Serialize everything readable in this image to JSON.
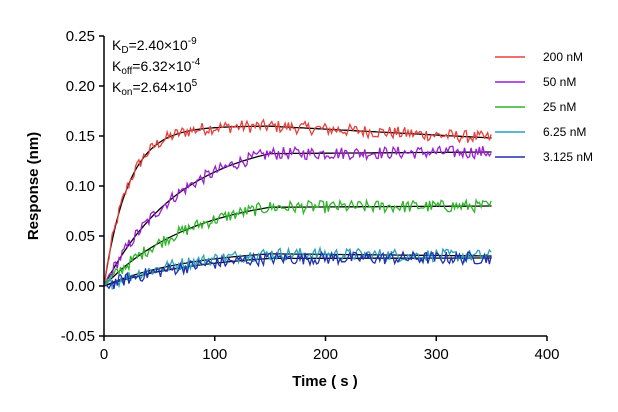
{
  "chart_data": {
    "type": "line",
    "xlabel": "Time ( s )",
    "ylabel": "Response (nm)",
    "xlim": [
      0,
      400
    ],
    "ylim": [
      -0.05,
      0.25
    ],
    "x_ticks": [
      "0",
      "100",
      "200",
      "300",
      "400"
    ],
    "y_ticks": [
      "-0.05",
      "0.00",
      "0.05",
      "0.10",
      "0.15",
      "0.20",
      "0.25"
    ],
    "grid": false,
    "legend_position": "top-right",
    "association_end": 150,
    "x_end": 350,
    "kinetics": {
      "kd": {
        "label": "K",
        "sub": "D",
        "value": "=2.40×10",
        "exp": "-9"
      },
      "koff": {
        "label": "K",
        "sub": "off",
        "value": "=6.32×10",
        "exp": "-4"
      },
      "kon": {
        "label": "K",
        "sub": "on",
        "value": "=2.64×10",
        "exp": "5"
      }
    },
    "series": [
      {
        "name": "200 nM",
        "color": "#e8413c",
        "amplitude": 0.16,
        "tau": 22,
        "decay_end": 0.148,
        "noise": 0.004
      },
      {
        "name": "50 nM",
        "color": "#9b1fd1",
        "amplitude": 0.15,
        "tau": 70,
        "decay_end": 0.134,
        "noise": 0.004
      },
      {
        "name": "25 nM",
        "color": "#2fb52a",
        "amplitude": 0.093,
        "tau": 80,
        "decay_end": 0.08,
        "noise": 0.004
      },
      {
        "name": "6.25 nM",
        "color": "#2aa1b8",
        "amplitude": 0.038,
        "tau": 80,
        "decay_end": 0.03,
        "noise": 0.004
      },
      {
        "name": "3.125 nM",
        "color": "#1f2fb0",
        "amplitude": 0.034,
        "tau": 90,
        "decay_end": 0.028,
        "noise": 0.004
      }
    ]
  }
}
